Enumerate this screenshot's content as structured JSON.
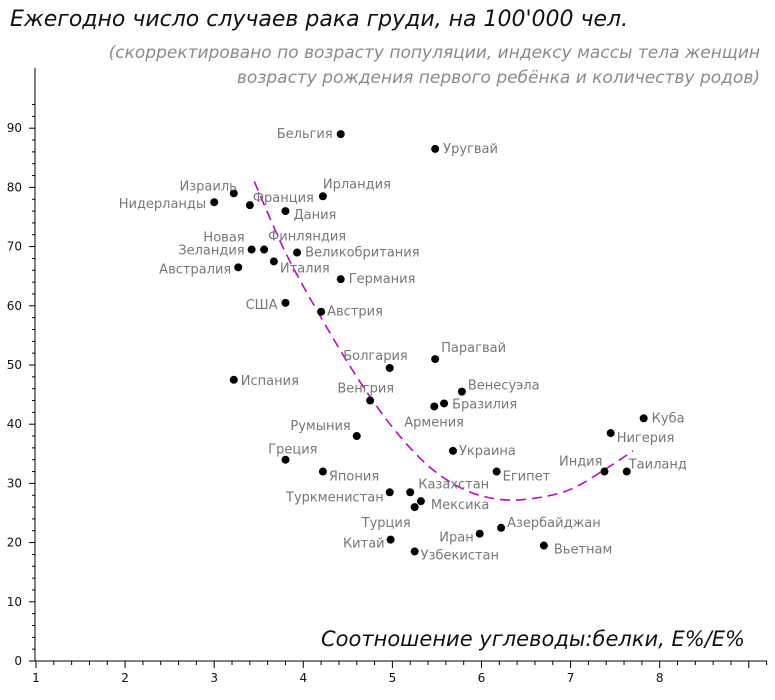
{
  "chart_data": {
    "type": "scatter",
    "title": "Ежегодно число случаев рака груди, на 100'000 чел.",
    "subtitle_line1": "(скорректировано по возрасту популяции, индексу массы тела женщин",
    "subtitle_line2": "возрасту рождения первого ребёнка и количеству родов)",
    "xlabel": "Соотношение углеводы:белки, E%/E%",
    "ylabel": "",
    "xlim": [
      1,
      9.25
    ],
    "ylim": [
      0,
      95
    ],
    "x_ticks": [
      1,
      2,
      3,
      4,
      5,
      6,
      7,
      8
    ],
    "y_ticks": [
      0,
      10,
      20,
      30,
      40,
      50,
      60,
      70,
      80,
      90
    ],
    "grid": false,
    "points": [
      {
        "label": "Бельгия",
        "x": 4.42,
        "y": 89
      },
      {
        "label": "Уругвай",
        "x": 5.48,
        "y": 86.5
      },
      {
        "label": "Израиль",
        "x": 3.22,
        "y": 79
      },
      {
        "label": "Ирландия",
        "x": 4.22,
        "y": 78.5
      },
      {
        "label": "Нидерланды",
        "x": 3.0,
        "y": 77.5
      },
      {
        "label": "Франция",
        "x": 3.4,
        "y": 77
      },
      {
        "label": "Дания",
        "x": 3.8,
        "y": 76
      },
      {
        "label": "Новая Зеландия",
        "x": 3.42,
        "y": 69.5
      },
      {
        "label": "Финляндия",
        "x": 3.56,
        "y": 69.5
      },
      {
        "label": "Великобритания",
        "x": 3.93,
        "y": 69
      },
      {
        "label": "Италия",
        "x": 3.67,
        "y": 67.5
      },
      {
        "label": "Австралия",
        "x": 3.27,
        "y": 66.5
      },
      {
        "label": "Германия",
        "x": 4.42,
        "y": 64.5
      },
      {
        "label": "США",
        "x": 3.8,
        "y": 60.5
      },
      {
        "label": "Австрия",
        "x": 4.2,
        "y": 59
      },
      {
        "label": "Парагвай",
        "x": 5.48,
        "y": 51
      },
      {
        "label": "Болгария",
        "x": 4.97,
        "y": 49.5
      },
      {
        "label": "Испания",
        "x": 3.22,
        "y": 47.5
      },
      {
        "label": "Венесуэла",
        "x": 5.78,
        "y": 45.5
      },
      {
        "label": "Венгрия",
        "x": 4.75,
        "y": 44
      },
      {
        "label": "Бразилия",
        "x": 5.58,
        "y": 43.5
      },
      {
        "label": "Армения",
        "x": 5.47,
        "y": 43
      },
      {
        "label": "Куба",
        "x": 7.82,
        "y": 41
      },
      {
        "label": "Нигерия",
        "x": 7.45,
        "y": 38.5
      },
      {
        "label": "Румыния",
        "x": 4.6,
        "y": 38
      },
      {
        "label": "Украина",
        "x": 5.68,
        "y": 35.5
      },
      {
        "label": "Греция",
        "x": 3.8,
        "y": 34
      },
      {
        "label": "Индия",
        "x": 7.38,
        "y": 32
      },
      {
        "label": "Таиланд",
        "x": 7.63,
        "y": 32
      },
      {
        "label": "Япония",
        "x": 4.22,
        "y": 32
      },
      {
        "label": "Египет",
        "x": 6.17,
        "y": 32
      },
      {
        "label": "Казахстан",
        "x": 5.2,
        "y": 28.5
      },
      {
        "label": "Туркменистан",
        "x": 4.97,
        "y": 28.5
      },
      {
        "label": "Мексика",
        "x": 5.32,
        "y": 27
      },
      {
        "label": "Турция",
        "x": 5.25,
        "y": 26
      },
      {
        "label": "Азербайджан",
        "x": 6.22,
        "y": 22.5
      },
      {
        "label": "Иран",
        "x": 5.98,
        "y": 21.5
      },
      {
        "label": "Китай",
        "x": 4.98,
        "y": 20.5
      },
      {
        "label": "Вьетнам",
        "x": 6.7,
        "y": 19.5
      },
      {
        "label": "Узбекистан",
        "x": 5.25,
        "y": 18.5
      }
    ],
    "trend": {
      "style": "dashed",
      "color": "#cc00cc",
      "points": [
        [
          3.45,
          81
        ],
        [
          3.8,
          69
        ],
        [
          4.2,
          58
        ],
        [
          4.6,
          48
        ],
        [
          5.0,
          39.5
        ],
        [
          5.4,
          33
        ],
        [
          5.8,
          29
        ],
        [
          6.2,
          27.3
        ],
        [
          6.6,
          27.5
        ],
        [
          7.0,
          29
        ],
        [
          7.4,
          32.5
        ],
        [
          7.7,
          35.5
        ]
      ]
    },
    "colors": {
      "point": "#000000",
      "label": "#777777",
      "trend": "#cc00cc",
      "axis": "#000000"
    }
  }
}
